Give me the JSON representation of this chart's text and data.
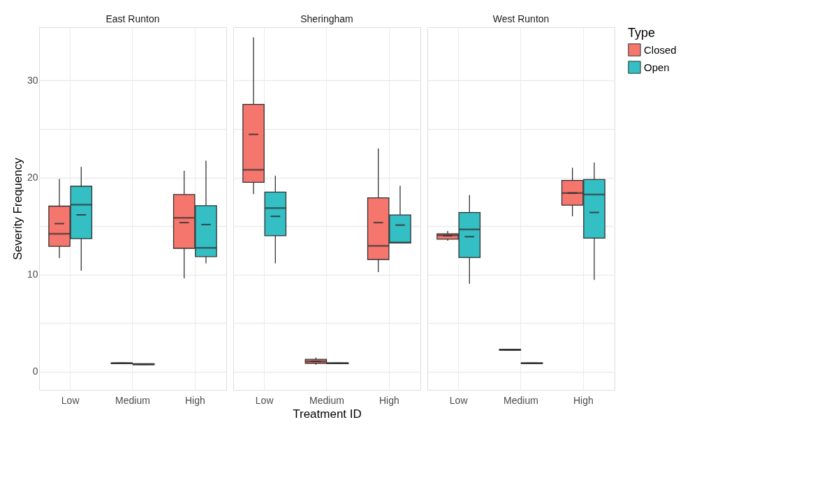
{
  "chart_data": [
    {
      "type": "box",
      "title": "East Runton",
      "ylabel": "Severity Frequency",
      "categories": [
        "Low",
        "Medium",
        "High"
      ],
      "ylim": [
        -1.9,
        35.5
      ],
      "yticks": [
        0,
        {
          "value": 5,
          "label": null
        },
        10,
        {
          "value": 15,
          "label": null
        },
        20,
        {
          "value": 25,
          "label": null
        },
        30
      ],
      "grid": true,
      "legend": "right",
      "series": [
        {
          "name": "Closed",
          "color": "#f4766d",
          "boxes": [
            {
              "low": 11.7,
              "q1": 12.9,
              "median": 14.2,
              "q3": 17.05,
              "high": 19.85,
              "mean": 15.25
            },
            {
              "low": 0.8,
              "q1": 0.8,
              "median": 0.85,
              "q3": 0.9,
              "high": 0.9,
              "mean": 0.85
            },
            {
              "low": 9.6,
              "q1": 12.7,
              "median": 15.85,
              "q3": 18.25,
              "high": 20.7,
              "mean": 15.35
            }
          ]
        },
        {
          "name": "Open",
          "color": "#33bfc4",
          "boxes": [
            {
              "low": 10.4,
              "q1": 13.7,
              "median": 17.2,
              "q3": 19.1,
              "high": 21.1,
              "mean": 16.15
            },
            {
              "low": 0.7,
              "q1": 0.7,
              "median": 0.75,
              "q3": 0.8,
              "high": 0.8,
              "mean": 0.75
            },
            {
              "low": 11.15,
              "q1": 11.85,
              "median": 12.75,
              "q3": 17.1,
              "high": 21.75,
              "mean": 15.15
            }
          ]
        }
      ]
    },
    {
      "type": "box",
      "title": "Sheringham",
      "xlabel": "Treatment ID",
      "categories": [
        "Low",
        "Medium",
        "High"
      ],
      "ylim": [
        -1.9,
        35.5
      ],
      "yticks": [
        0,
        {
          "value": 5,
          "label": null
        },
        10,
        {
          "value": 15,
          "label": null
        },
        20,
        {
          "value": 25,
          "label": null
        },
        30
      ],
      "grid": true,
      "tick_labels": "x",
      "legend": "right",
      "series": [
        {
          "name": "Closed",
          "color": "#f4766d",
          "boxes": [
            {
              "low": 18.3,
              "q1": 19.5,
              "median": 20.8,
              "q3": 27.55,
              "high": 34.45,
              "mean": 24.45
            },
            {
              "low": 0.7,
              "q1": 0.85,
              "median": 1.05,
              "q3": 1.25,
              "high": 1.45,
              "mean": 1.05
            },
            {
              "low": 10.25,
              "q1": 11.55,
              "median": 12.95,
              "q3": 17.9,
              "high": 23.0,
              "mean": 15.35
            }
          ]
        },
        {
          "name": "Open",
          "color": "#33bfc4",
          "boxes": [
            {
              "low": 11.15,
              "q1": 14.0,
              "median": 16.85,
              "q3": 18.5,
              "high": 20.2,
              "mean": 16.0
            },
            {
              "low": 0.8,
              "q1": 0.8,
              "median": 0.85,
              "q3": 0.9,
              "high": 0.9,
              "mean": 0.85
            },
            {
              "low": 13.25,
              "q1": 13.25,
              "median": 13.3,
              "q3": 16.15,
              "high": 19.15,
              "mean": 15.1
            }
          ]
        }
      ]
    },
    {
      "type": "box",
      "title": "West Runton",
      "categories": [
        "Low",
        "Medium",
        "High"
      ],
      "ylim": [
        -1.9,
        35.5
      ],
      "yticks": [
        0,
        {
          "value": 5,
          "label": null
        },
        10,
        {
          "value": 15,
          "label": null
        },
        20,
        {
          "value": 25,
          "label": null
        },
        30
      ],
      "grid": true,
      "tick_labels": "x",
      "legend": "right",
      "legend_title": "Type",
      "series": [
        {
          "name": "Closed",
          "color": "#f4766d",
          "boxes": [
            {
              "low": 13.5,
              "q1": 13.65,
              "median": 14.05,
              "q3": 14.2,
              "high": 14.5,
              "mean": 14.0
            },
            {
              "low": 2.2,
              "q1": 2.2,
              "median": 2.25,
              "q3": 2.3,
              "high": 2.3,
              "mean": 2.25
            },
            {
              "low": 16.0,
              "q1": 17.15,
              "median": 18.4,
              "q3": 19.7,
              "high": 21.0,
              "mean": 18.4
            }
          ]
        },
        {
          "name": "Open",
          "color": "#33bfc4",
          "boxes": [
            {
              "low": 9.05,
              "q1": 11.75,
              "median": 14.65,
              "q3": 16.4,
              "high": 18.2,
              "mean": 13.9
            },
            {
              "low": 0.8,
              "q1": 0.8,
              "median": 0.85,
              "q3": 0.9,
              "high": 0.9,
              "mean": 0.85
            },
            {
              "low": 9.45,
              "q1": 13.75,
              "median": 18.25,
              "q3": 19.8,
              "high": 21.55,
              "mean": 16.4
            }
          ]
        }
      ]
    }
  ]
}
